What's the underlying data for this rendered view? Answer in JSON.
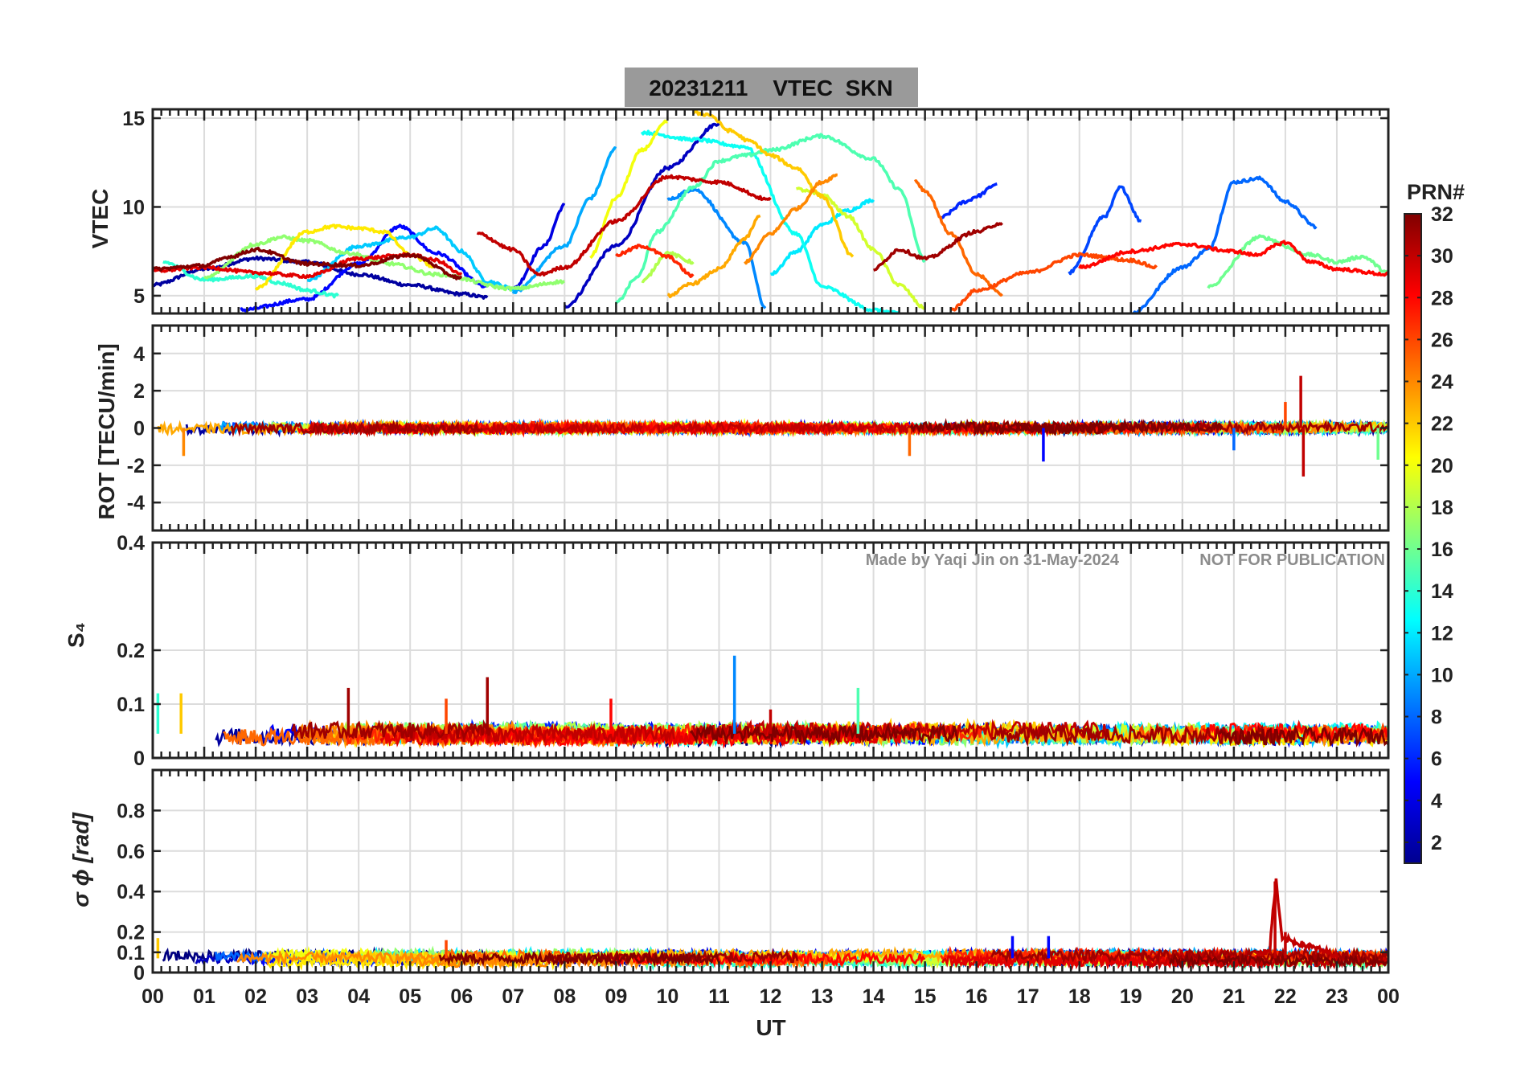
{
  "figure": {
    "title": "20231211    VTEC  SKN",
    "watermark_author": "Made by Yaqi Jin on 31-May-2024",
    "watermark_notice": "NOT FOR PUBLICATION",
    "xlabel": "UT",
    "x_tick_labels": [
      "00",
      "01",
      "02",
      "03",
      "04",
      "05",
      "06",
      "07",
      "08",
      "09",
      "10",
      "11",
      "12",
      "13",
      "14",
      "15",
      "16",
      "17",
      "18",
      "19",
      "20",
      "21",
      "22",
      "23",
      "00"
    ],
    "colorbar": {
      "title": "PRN#",
      "range": [
        1,
        32
      ],
      "tick_values": [
        2,
        4,
        6,
        8,
        10,
        12,
        14,
        16,
        18,
        20,
        22,
        24,
        26,
        28,
        30,
        32
      ],
      "tick_labels": [
        "2",
        "4",
        "6",
        "8",
        "10",
        "12",
        "14",
        "16",
        "18",
        "20",
        "22",
        "24",
        "26",
        "28",
        "30",
        "32"
      ],
      "colormap": "jet"
    }
  },
  "chart_data": [
    {
      "type": "line",
      "panel": "vtec",
      "ylabel": "VTEC",
      "xlim": [
        0,
        24
      ],
      "ylim": [
        4,
        15.5
      ],
      "yticks": [
        5,
        10,
        15
      ],
      "ytick_labels": [
        "5",
        "10",
        "15"
      ],
      "grid": true,
      "series": [
        {
          "name": "PRN 2",
          "prn": 2,
          "x": [
            0.0,
            1.0,
            2.0,
            3.0,
            4.0,
            5.0,
            6.0,
            6.5
          ],
          "values": [
            5.6,
            6.5,
            7.1,
            6.9,
            6.2,
            5.6,
            5.1,
            4.9
          ]
        },
        {
          "name": "PRN 3",
          "prn": 3,
          "x": [
            8.0,
            9.0,
            10.0,
            11.0
          ],
          "values": [
            4.4,
            7.8,
            12.2,
            14.7
          ]
        },
        {
          "name": "PRN 4",
          "prn": 4,
          "x": [
            7.0,
            7.6,
            8.0
          ],
          "values": [
            5.4,
            7.8,
            10.1
          ]
        },
        {
          "name": "PRN 5",
          "prn": 5,
          "x": [
            1.7,
            3.0,
            4.0,
            4.8,
            5.5,
            6.5
          ],
          "values": [
            4.2,
            4.8,
            6.8,
            8.9,
            7.4,
            5.5
          ]
        },
        {
          "name": "PRN 6",
          "prn": 6,
          "x": [
            15.3,
            15.8,
            16.0,
            16.4
          ],
          "values": [
            9.4,
            10.3,
            10.6,
            11.3
          ]
        },
        {
          "name": "PRN 7",
          "prn": 7,
          "x": [
            17.8,
            18.5,
            18.8,
            19.2
          ],
          "values": [
            6.3,
            9.5,
            11.1,
            9.2
          ]
        },
        {
          "name": "PRN 8",
          "prn": 8,
          "x": [
            19.0,
            20.0,
            20.5,
            21.0,
            21.5,
            22.0,
            22.6
          ],
          "values": [
            4.0,
            6.6,
            7.6,
            11.4,
            11.6,
            10.3,
            8.9
          ]
        },
        {
          "name": "PRN 9",
          "prn": 9,
          "x": [
            10.0,
            10.5,
            11.5,
            11.9
          ],
          "values": [
            10.4,
            11.0,
            8.0,
            4.3
          ]
        },
        {
          "name": "PRN 10",
          "prn": 10,
          "x": [
            7.0,
            8.0,
            8.5,
            9.0
          ],
          "values": [
            5.2,
            7.8,
            10.5,
            13.3
          ]
        },
        {
          "name": "PRN 11",
          "prn": 11,
          "x": [
            3.0,
            4.0,
            5.0,
            5.5,
            6.0,
            6.5,
            7.0
          ],
          "values": [
            5.9,
            7.8,
            8.3,
            8.8,
            7.5,
            5.8,
            5.4
          ]
        },
        {
          "name": "PRN 12",
          "prn": 12,
          "x": [
            12.0,
            12.5,
            13.0,
            13.5,
            14.0
          ],
          "values": [
            6.2,
            7.5,
            9.0,
            9.8,
            10.4
          ]
        },
        {
          "name": "PRN 13",
          "prn": 13,
          "x": [
            9.5,
            10.5,
            11.5,
            12.5,
            13.0,
            14.0,
            14.5
          ],
          "values": [
            14.2,
            13.8,
            13.4,
            8.5,
            5.5,
            4.2,
            4.0
          ]
        },
        {
          "name": "PRN 14",
          "prn": 14,
          "x": [
            0.2,
            1.0,
            2.0,
            2.5,
            3.0,
            3.6
          ],
          "values": [
            6.9,
            5.9,
            6.1,
            5.7,
            5.3,
            5.0
          ]
        },
        {
          "name": "PRN 15",
          "prn": 15,
          "x": [
            9.0,
            9.4,
            9.8,
            10.5,
            11.0,
            11.5,
            12.0,
            13.0,
            14.0,
            14.5,
            15.0
          ],
          "values": [
            4.6,
            6.0,
            8.6,
            11.1,
            12.6,
            12.9,
            13.2,
            14.0,
            12.7,
            11.0,
            7.0
          ]
        },
        {
          "name": "PRN 16",
          "prn": 16,
          "x": [
            20.5,
            21.5,
            22.5,
            23.0,
            23.5,
            24.0
          ],
          "values": [
            5.5,
            8.3,
            7.3,
            6.9,
            7.2,
            6.3
          ]
        },
        {
          "name": "PRN 17",
          "prn": 17,
          "x": [
            1.0,
            2.0,
            2.5,
            3.0,
            3.8,
            4.6,
            5.5,
            7.0,
            8.0
          ],
          "values": [
            6.0,
            7.9,
            8.3,
            8.1,
            7.4,
            6.8,
            6.2,
            5.4,
            5.8
          ]
        },
        {
          "name": "PRN 18",
          "prn": 18,
          "x": [
            9.5,
            10.0,
            10.5
          ],
          "values": [
            5.8,
            7.4,
            6.9
          ]
        },
        {
          "name": "PRN 19",
          "prn": 19,
          "x": [
            12.5,
            13.0,
            13.5,
            14.0,
            14.5,
            15.0
          ],
          "values": [
            11.0,
            10.7,
            9.5,
            7.6,
            5.6,
            4.3
          ]
        },
        {
          "name": "PRN 20",
          "prn": 20,
          "x": [
            8.5,
            9.0,
            9.5,
            10.0
          ],
          "values": [
            7.2,
            10.5,
            13.2,
            14.8
          ]
        },
        {
          "name": "PRN 21",
          "prn": 21,
          "x": [
            2.0,
            3.0,
            3.5,
            4.0,
            4.5,
            5.0,
            5.5
          ],
          "values": [
            5.4,
            8.6,
            8.9,
            8.8,
            8.6,
            7.3,
            6.6
          ]
        },
        {
          "name": "PRN 22",
          "prn": 22,
          "x": [
            10.5,
            10.8,
            11.2,
            11.6,
            12.0,
            12.5,
            13.0,
            13.6
          ],
          "values": [
            15.3,
            15.2,
            14.3,
            13.7,
            12.9,
            12.2,
            10.6,
            7.2
          ]
        },
        {
          "name": "PRN 23",
          "prn": 23,
          "x": [
            10.0,
            10.5,
            11.0,
            11.5,
            11.8
          ],
          "values": [
            5.0,
            5.7,
            6.5,
            8.2,
            9.5
          ]
        },
        {
          "name": "PRN 24",
          "prn": 24,
          "x": [
            11.5,
            12.0,
            12.5,
            13.0,
            13.3
          ],
          "values": [
            6.9,
            8.5,
            9.9,
            11.4,
            11.8
          ]
        },
        {
          "name": "PRN 25",
          "prn": 25,
          "x": [
            14.8,
            15.0,
            15.5,
            16.0,
            16.5
          ],
          "values": [
            11.5,
            10.9,
            8.5,
            6.2,
            5.1
          ]
        },
        {
          "name": "PRN 26",
          "prn": 26,
          "x": [
            15.5,
            16.0,
            17.0,
            18.0,
            19.0,
            19.5
          ],
          "values": [
            4.2,
            5.3,
            6.3,
            7.3,
            7.0,
            6.6
          ]
        },
        {
          "name": "PRN 27",
          "prn": 27,
          "x": [
            9.0,
            9.5,
            10.0,
            10.5
          ],
          "values": [
            7.3,
            7.8,
            7.2,
            6.1
          ]
        },
        {
          "name": "PRN 28",
          "prn": 28,
          "x": [
            18.0,
            19.0,
            20.0,
            21.0,
            21.4,
            22.0,
            22.5,
            23.0,
            24.0
          ],
          "values": [
            6.6,
            7.5,
            7.9,
            7.5,
            7.3,
            8.0,
            6.9,
            6.5,
            6.2
          ]
        },
        {
          "name": "PRN 29",
          "prn": 29,
          "x": [
            0.0,
            1.0,
            2.0,
            3.0,
            4.0,
            5.0,
            5.5,
            6.0
          ],
          "values": [
            6.4,
            6.6,
            6.3,
            6.1,
            7.1,
            7.3,
            7.0,
            6.2
          ]
        },
        {
          "name": "PRN 30",
          "prn": 30,
          "x": [
            6.3,
            7.0,
            7.5,
            8.0,
            9.0,
            10.0,
            11.0,
            12.0
          ],
          "values": [
            8.5,
            7.6,
            6.2,
            6.6,
            9.2,
            11.7,
            11.4,
            10.4
          ]
        },
        {
          "name": "PRN 31",
          "prn": 31,
          "x": [
            14.0,
            14.5,
            15.0,
            16.0,
            16.5
          ],
          "values": [
            6.5,
            7.6,
            7.1,
            8.6,
            9.1
          ]
        },
        {
          "name": "PRN 32",
          "prn": 32,
          "x": [
            0.0,
            1.0,
            1.5,
            2.0,
            3.0,
            4.0,
            5.0,
            6.0
          ],
          "values": [
            6.5,
            6.7,
            7.2,
            7.6,
            6.8,
            6.7,
            7.3,
            6.0
          ]
        }
      ]
    },
    {
      "type": "line",
      "panel": "rot",
      "ylabel": "ROT [TECU/min]",
      "xlim": [
        0,
        24
      ],
      "ylim": [
        -5.5,
        5.5
      ],
      "yticks": [
        -4,
        -2,
        0,
        2,
        4
      ],
      "ytick_labels": [
        "-4",
        "-2",
        "0",
        "2",
        "4"
      ],
      "grid": true,
      "summary": "All PRNs fluctuate near 0 TECU/min; spikes reach about +2.8 and -2.6 near 22 UT, about -1.8 near 17.3 UT, -1.5 near 0.6 UT and 14.7 UT.",
      "spikes": [
        {
          "prn": 30,
          "x": 22.3,
          "value": 2.8
        },
        {
          "prn": 30,
          "x": 22.35,
          "value": -2.6
        },
        {
          "prn": 5,
          "x": 17.3,
          "value": -1.8
        },
        {
          "prn": 24,
          "x": 0.6,
          "value": -1.5
        },
        {
          "prn": 25,
          "x": 14.7,
          "value": -1.5
        },
        {
          "prn": 26,
          "x": 22.0,
          "value": 1.4
        },
        {
          "prn": 8,
          "x": 21.0,
          "value": -1.2
        },
        {
          "prn": 16,
          "x": 23.8,
          "value": -1.7
        }
      ]
    },
    {
      "type": "line",
      "panel": "s4",
      "ylabel": "S₄",
      "xlim": [
        0,
        24
      ],
      "ylim": [
        0,
        0.4
      ],
      "yticks": [
        0,
        0.1,
        0.2,
        0.4
      ],
      "ytick_labels": [
        "0",
        "0.1",
        "0.2",
        "0.4"
      ],
      "grid": true,
      "summary": "Baseline S4 about 0.03-0.07 for all PRNs across the day.",
      "spikes": [
        {
          "prn": 9,
          "x": 11.3,
          "value": 0.19
        },
        {
          "prn": 31,
          "x": 6.5,
          "value": 0.15
        },
        {
          "prn": 15,
          "x": 13.7,
          "value": 0.13
        },
        {
          "prn": 31,
          "x": 3.8,
          "value": 0.13
        },
        {
          "prn": 22,
          "x": 0.55,
          "value": 0.12
        },
        {
          "prn": 14,
          "x": 0.1,
          "value": 0.12
        },
        {
          "prn": 26,
          "x": 5.7,
          "value": 0.11
        },
        {
          "prn": 28,
          "x": 8.9,
          "value": 0.11
        },
        {
          "prn": 30,
          "x": 12.0,
          "value": 0.09
        }
      ]
    },
    {
      "type": "line",
      "panel": "sigma_phi",
      "ylabel": "σ ϕ [rad]",
      "xlim": [
        0,
        24
      ],
      "ylim": [
        0,
        1.0
      ],
      "yticks": [
        0,
        0.1,
        0.2,
        0.4,
        0.6,
        0.8
      ],
      "ytick_labels": [
        "0",
        "0.1",
        "0.2",
        "0.4",
        "0.6",
        "0.8"
      ],
      "grid": true,
      "summary": "Phase scintillation index mostly 0.03-0.12 rad; a pronounced peak near 21.8 UT.",
      "spikes": [
        {
          "prn": 30,
          "x": 21.8,
          "value": 0.45
        },
        {
          "prn": 30,
          "x": 22.0,
          "value": 0.2
        },
        {
          "prn": 5,
          "x": 16.7,
          "value": 0.18
        },
        {
          "prn": 5,
          "x": 17.4,
          "value": 0.18
        },
        {
          "prn": 22,
          "x": 0.1,
          "value": 0.17
        },
        {
          "prn": 26,
          "x": 5.7,
          "value": 0.16
        }
      ]
    }
  ]
}
